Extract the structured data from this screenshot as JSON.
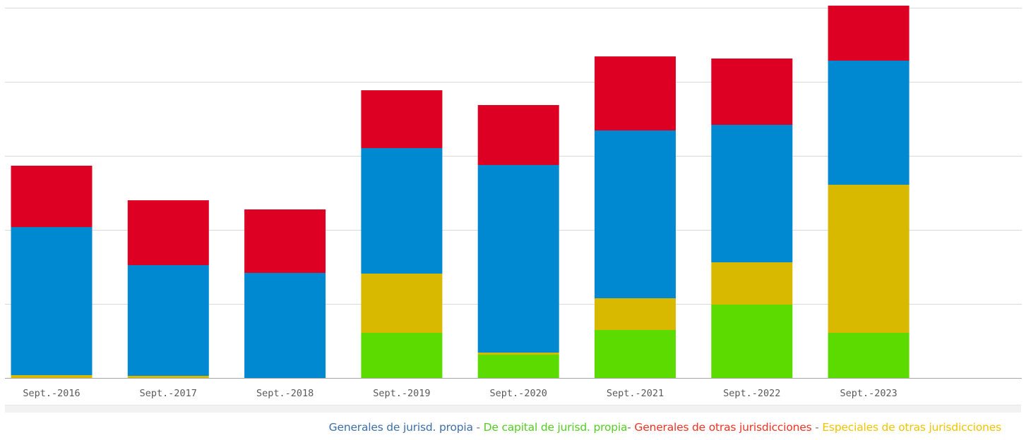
{
  "chart_data": {
    "type": "bar",
    "stacked": true,
    "categories": [
      "Sept.-2016",
      "Sept.-2017",
      "Sept.-2018",
      "Sept.-2019",
      "Sept.-2020",
      "Sept.-2021",
      "Sept.-2022",
      "Sept.-2023"
    ],
    "series": [
      {
        "name": "De capital de jurisd. propia",
        "color": "#5cdb00",
        "values": [
          0,
          0,
          0,
          64,
          33,
          68,
          104,
          64
        ]
      },
      {
        "name": "Especiales de otras jurisdicciones",
        "color": "#d9b800",
        "values": [
          4,
          3,
          0,
          84,
          3,
          45,
          60,
          210
        ]
      },
      {
        "name": "Generales de jurisd. propia",
        "color": "#0088d1",
        "values": [
          210,
          157,
          149,
          178,
          266,
          238,
          195,
          176
        ]
      },
      {
        "name": "Generales de otras jurisdicciones",
        "color": "#dd0022",
        "values": [
          87,
          92,
          90,
          82,
          85,
          105,
          94,
          78
        ]
      }
    ],
    "ylim": [
      0,
      528
    ],
    "yticks": [
      0,
      105,
      210,
      315,
      420,
      525
    ],
    "y_tick_labels_shown": false,
    "grid": true,
    "legend": "bottom-right"
  },
  "legend_text": {
    "items": [
      {
        "text": "Generales de jurisd. propia",
        "color": "#3d6fa8"
      },
      {
        "text": " - ",
        "color": "#777777"
      },
      {
        "text": "De capital de jurisd. propia",
        "color": "#55cc22"
      },
      {
        "text": "- ",
        "color": "#777777"
      },
      {
        "text": "Generales de otras jurisdicciones",
        "color": "#ee3322"
      },
      {
        "text": " - ",
        "color": "#777777"
      },
      {
        "text": "Especiales de otras jurisdicciones",
        "color": "#f0c400"
      }
    ]
  }
}
